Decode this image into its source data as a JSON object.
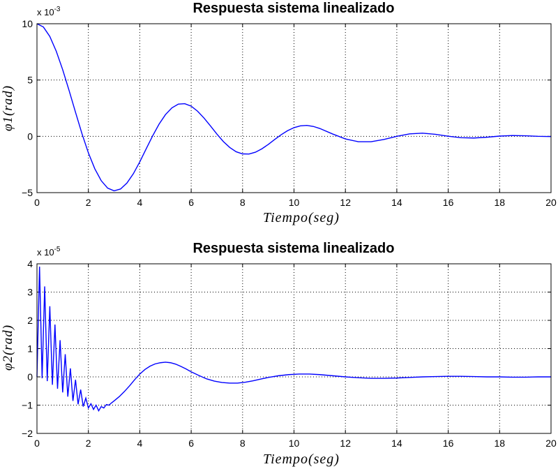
{
  "chart_data": [
    {
      "type": "line",
      "title": "Respuesta sistema  linealizado",
      "xlabel": "Tiempo(seg)",
      "ylabel": "φ1(rad)",
      "exponent_label": "x 10",
      "exponent_power": "-3",
      "xlim": [
        0,
        20
      ],
      "ylim": [
        -5,
        10
      ],
      "xticks": [
        "0",
        "2",
        "4",
        "6",
        "8",
        "10",
        "12",
        "14",
        "16",
        "18",
        "20"
      ],
      "yticks": [
        "−5",
        "0",
        "5",
        "10"
      ],
      "grid": true,
      "series": [
        {
          "color": "#0000ff",
          "x": [
            0,
            0.25,
            0.5,
            0.75,
            1,
            1.25,
            1.5,
            1.75,
            2,
            2.25,
            2.5,
            2.75,
            3,
            3.25,
            3.5,
            3.75,
            4,
            4.25,
            4.5,
            4.75,
            5,
            5.25,
            5.5,
            5.75,
            6,
            6.25,
            6.5,
            6.75,
            7,
            7.25,
            7.5,
            7.75,
            8,
            8.25,
            8.5,
            8.75,
            9,
            9.25,
            9.5,
            9.75,
            10,
            10.25,
            10.5,
            10.75,
            11,
            11.5,
            12,
            12.5,
            13,
            13.5,
            14,
            14.5,
            15,
            15.5,
            16,
            16.5,
            17,
            17.5,
            18,
            18.5,
            19,
            19.5,
            20
          ],
          "y": [
            10.0,
            9.71,
            8.87,
            7.56,
            5.92,
            4.07,
            2.13,
            0.24,
            -1.47,
            -2.88,
            -3.94,
            -4.6,
            -4.84,
            -4.68,
            -4.15,
            -3.32,
            -2.27,
            -1.11,
            0.04,
            1.08,
            1.93,
            2.53,
            2.86,
            2.9,
            2.68,
            2.23,
            1.62,
            0.92,
            0.2,
            -0.46,
            -0.99,
            -1.37,
            -1.56,
            -1.57,
            -1.41,
            -1.11,
            -0.72,
            -0.28,
            0.14,
            0.5,
            0.77,
            0.93,
            0.97,
            0.88,
            0.7,
            0.21,
            -0.23,
            -0.48,
            -0.48,
            -0.28,
            0.0,
            0.22,
            0.28,
            0.18,
            0.01,
            -0.12,
            -0.15,
            -0.08,
            0.02,
            0.07,
            0.05,
            0.0,
            -0.02
          ]
        }
      ]
    },
    {
      "type": "line",
      "title": "Respuesta sistema linealizado",
      "xlabel": "Tiempo(seg)",
      "ylabel": "φ2(rad)",
      "exponent_label": "x 10",
      "exponent_power": "-5",
      "xlim": [
        0,
        20
      ],
      "ylim": [
        -2,
        4
      ],
      "xticks": [
        "0",
        "2",
        "4",
        "6",
        "8",
        "10",
        "12",
        "14",
        "16",
        "18",
        "20"
      ],
      "yticks": [
        "−2",
        "−1",
        "0",
        "1",
        "2",
        "3",
        "4"
      ],
      "grid": true,
      "series": [
        {
          "color": "#0000ff",
          "x": [
            0,
            0.1,
            0.2,
            0.3,
            0.4,
            0.5,
            0.6,
            0.7,
            0.8,
            0.9,
            1.0,
            1.1,
            1.2,
            1.3,
            1.4,
            1.5,
            1.6,
            1.7,
            1.8,
            1.9,
            2.0,
            2.1,
            2.2,
            2.3,
            2.4,
            2.5,
            2.6,
            2.7,
            2.8,
            2.9,
            3.0,
            3.2,
            3.4,
            3.6,
            3.8,
            4.0,
            4.2,
            4.4,
            4.6,
            4.8,
            5.0,
            5.2,
            5.4,
            5.6,
            5.8,
            6.0,
            6.3,
            6.6,
            6.9,
            7.2,
            7.5,
            7.8,
            8.1,
            8.4,
            8.7,
            9.0,
            9.4,
            9.8,
            10.2,
            10.6,
            11.0,
            11.5,
            12.0,
            12.5,
            13.0,
            13.5,
            14.0,
            14.5,
            15.0,
            15.5,
            16.0,
            16.5,
            17.0,
            17.5,
            18.0,
            18.5,
            19.0,
            19.5,
            20.0
          ],
          "y": [
            0.0,
            3.9,
            -0.05,
            3.2,
            -0.15,
            2.5,
            -0.28,
            1.85,
            -0.42,
            1.3,
            -0.55,
            0.8,
            -0.7,
            0.3,
            -0.85,
            -0.1,
            -0.97,
            -0.45,
            -1.05,
            -0.75,
            -1.1,
            -0.95,
            -1.15,
            -1.0,
            -1.2,
            -1.05,
            -1.1,
            -0.98,
            -1.0,
            -0.92,
            -0.85,
            -0.7,
            -0.52,
            -0.32,
            -0.1,
            0.1,
            0.26,
            0.38,
            0.46,
            0.5,
            0.52,
            0.5,
            0.45,
            0.37,
            0.28,
            0.18,
            0.05,
            -0.07,
            -0.15,
            -0.2,
            -0.22,
            -0.22,
            -0.19,
            -0.14,
            -0.08,
            -0.02,
            0.04,
            0.08,
            0.1,
            0.1,
            0.08,
            0.04,
            0.0,
            -0.03,
            -0.05,
            -0.05,
            -0.04,
            -0.02,
            0.0,
            0.01,
            0.02,
            0.02,
            0.01,
            0.0,
            0.0,
            -0.01,
            -0.01,
            0.0,
            0.0
          ]
        }
      ]
    }
  ]
}
